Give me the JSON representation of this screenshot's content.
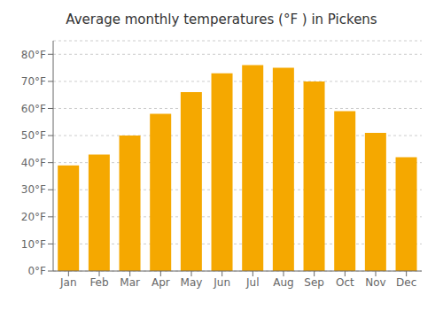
{
  "chart_data": {
    "type": "bar",
    "title": "Average monthly temperatures (°F ) in Pickens",
    "categories": [
      "Jan",
      "Feb",
      "Mar",
      "Apr",
      "May",
      "Jun",
      "Jul",
      "Aug",
      "Sep",
      "Oct",
      "Nov",
      "Dec"
    ],
    "values": [
      39,
      43,
      50,
      58,
      66,
      73,
      76,
      75,
      70,
      59,
      51,
      42
    ],
    "color": "#F5A800",
    "ylim": [
      0,
      85
    ],
    "yticks": [
      {
        "value": 0,
        "label": "0°F"
      },
      {
        "value": 10,
        "label": "10°F"
      },
      {
        "value": 20,
        "label": "20°F"
      },
      {
        "value": 30,
        "label": "30°F"
      },
      {
        "value": 40,
        "label": "40°F"
      },
      {
        "value": 50,
        "label": "50°F"
      },
      {
        "value": 60,
        "label": "60°F"
      },
      {
        "value": 70,
        "label": "70°F"
      },
      {
        "value": 80,
        "label": "80°F"
      }
    ],
    "grid": true
  }
}
